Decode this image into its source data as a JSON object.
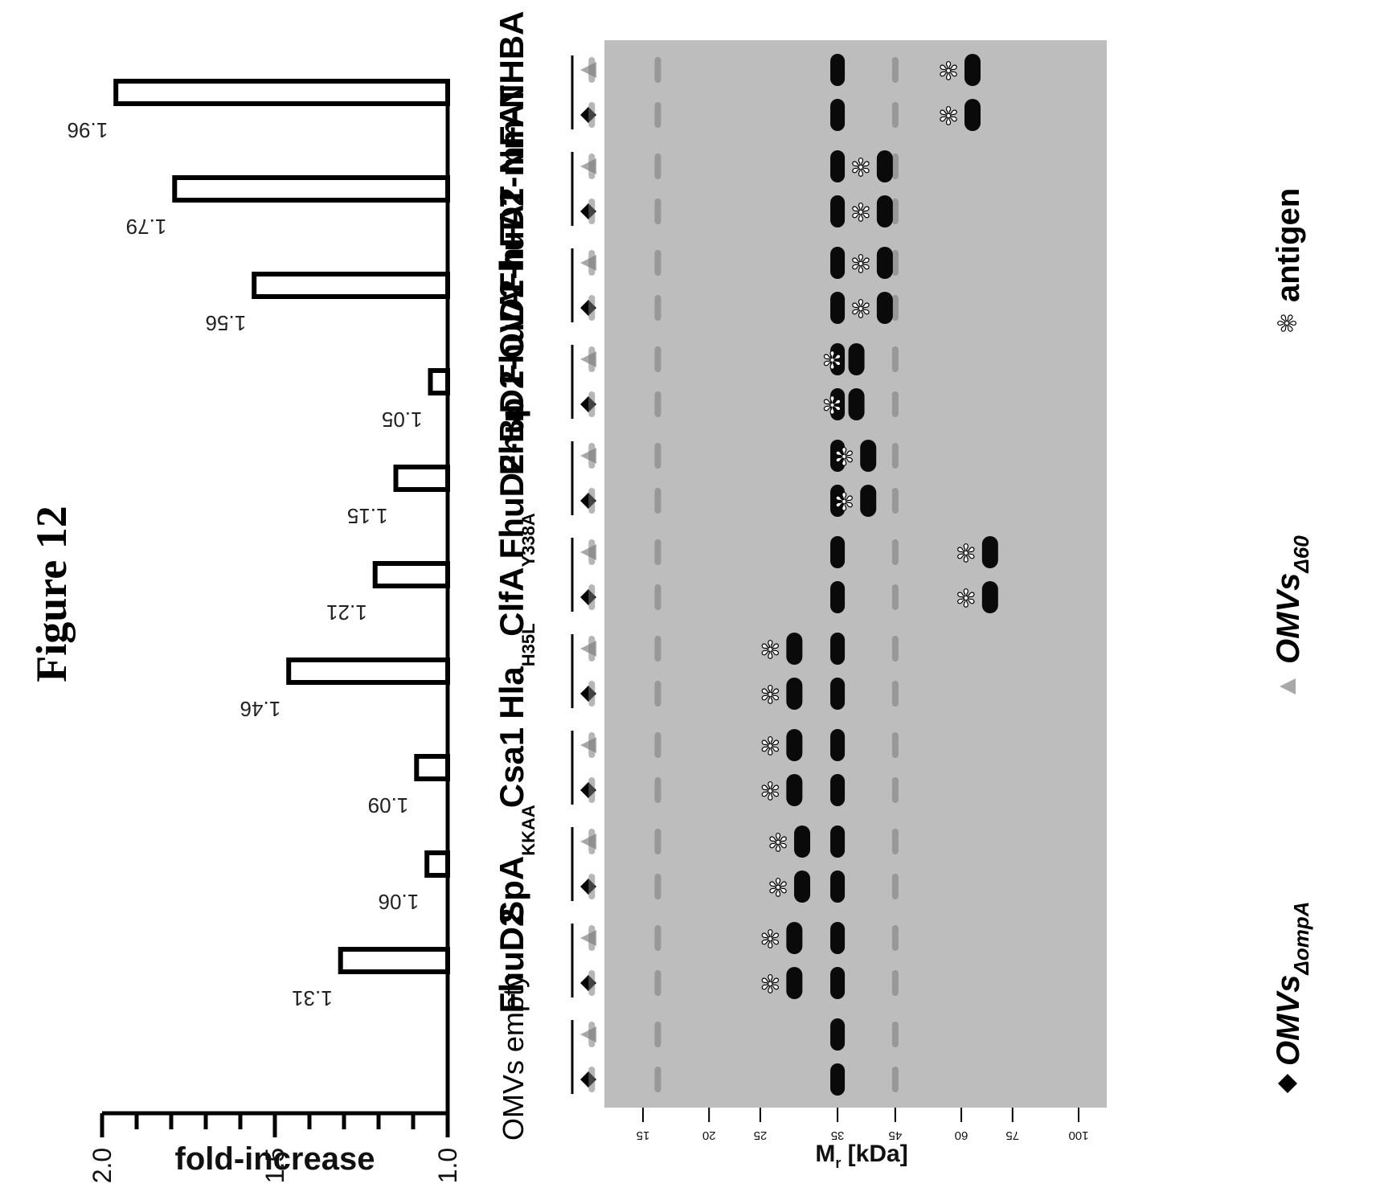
{
  "figure_title": "Figure 12",
  "chart_data": {
    "type": "bar",
    "ylabel": "fold-increase",
    "ylim": [
      1.0,
      2.0
    ],
    "yticks": [
      "1.0",
      "1.5",
      "2.0"
    ],
    "categories": [
      {
        "main": "OMVs empty",
        "sub": ""
      },
      {
        "main": "FhuD2",
        "sub": ""
      },
      {
        "main": "SpA",
        "sub": "KKAA"
      },
      {
        "main": "Csa1",
        "sub": ""
      },
      {
        "main": "Hla",
        "sub": "H35L"
      },
      {
        "main": "ClfA",
        "sub": "Y338A"
      },
      {
        "main": "FhuD2-Bp",
        "sub": ""
      },
      {
        "main": "FhuD2-OVA",
        "sub": ""
      },
      {
        "main": "FhuD2-hFAT",
        "sub": ""
      },
      {
        "main": "FhuD2-mFAT",
        "sub": ""
      },
      {
        "main": "Nm-NHBA",
        "sub": ""
      }
    ],
    "values": [
      null,
      1.31,
      1.06,
      1.09,
      1.46,
      1.21,
      1.15,
      1.05,
      1.56,
      1.79,
      1.96
    ],
    "value_labels": [
      "",
      "1.31",
      "1.06",
      "1.09",
      "1.46",
      "1.21",
      "1.15",
      "1.05",
      "1.56",
      "1.79",
      "1.96"
    ]
  },
  "gel": {
    "ylabel_main": "M",
    "ylabel_sub": "r",
    "ylabel_rest": " [kDa]",
    "markers": [
      "100",
      "75",
      "60",
      "45",
      "35",
      "25",
      "20",
      "15"
    ],
    "antigen_mw": [
      null,
      29,
      30,
      29,
      29,
      68,
      40,
      38,
      43,
      43,
      63
    ]
  },
  "legend": {
    "items": [
      {
        "symbol": "diamond",
        "label": "OMVs",
        "sub": "ΔompA"
      },
      {
        "symbol": "triangle",
        "label": "OMVs",
        "sub": "Δ60"
      },
      {
        "symbol": "asterisk",
        "label": "antigen",
        "sub": ""
      }
    ]
  },
  "colors": {
    "bar_fill": "#ffffff",
    "bar_stroke": "#000000",
    "gel_bg": "#bdbdbd",
    "band": "#0a0a0a",
    "triangle": "#a8a8a8"
  }
}
